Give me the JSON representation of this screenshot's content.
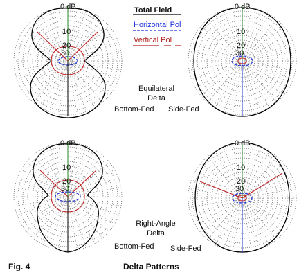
{
  "legend": {
    "total": {
      "label": "Total Field",
      "color": "#000000"
    },
    "horizontal": {
      "label": "Horizontal Pol",
      "color": "#1c2fd8"
    },
    "vertical": {
      "label": "Vertical Pol",
      "color": "#b32020"
    }
  },
  "rings": [
    "0 dB",
    "10",
    "20",
    "30"
  ],
  "groups": [
    {
      "line1": "Equilateral",
      "line2": "Delta",
      "left_label": "Bottom-Fed",
      "right_label": "Side-Fed"
    },
    {
      "line1": "Right-Angle",
      "line2": "Delta",
      "left_label": "Bottom-Fed",
      "right_label": "Side-Fed"
    }
  ],
  "caption": {
    "fig": "Fig. 4",
    "title": "Delta Patterns"
  },
  "colors": {
    "grid": "#555555",
    "axis": "#2a8a2a",
    "total": "#000000",
    "horizontal": "#1c2fd8",
    "vertical": "#c02020"
  }
}
